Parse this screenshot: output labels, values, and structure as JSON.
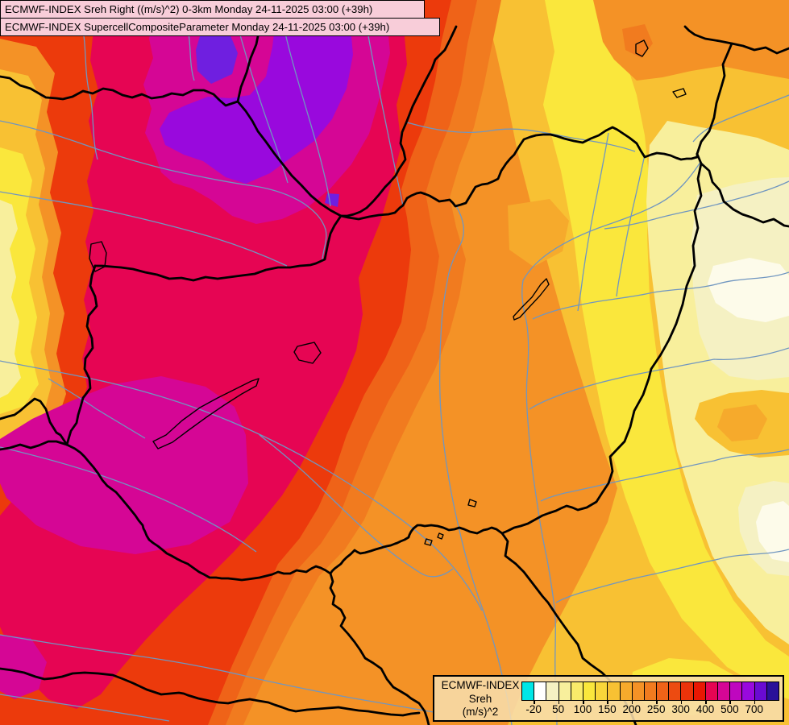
{
  "header": {
    "line1": "ECMWF-INDEX Sreh Right ((m/s)^2) 0-3km Monday 24-11-2025 03:00 (+39h)",
    "line2": "ECMWF-INDEX SupercellCompositeParameter Monday 24-11-2025 03:00 (+39h)"
  },
  "legend": {
    "product": "ECMWF-INDEX",
    "parameter": "Sreh",
    "units": "(m/s)^2",
    "tick_labels": [
      "-20",
      "50",
      "100",
      "150",
      "200",
      "250",
      "300",
      "400",
      "500",
      "700"
    ],
    "swatch_colors": [
      "#00E6E6",
      "#FFFFFF",
      "#F5F1C3",
      "#F8EF9C",
      "#F9EB6A",
      "#FAE73C",
      "#F9D63A",
      "#F8C133",
      "#F6AA2C",
      "#F49226",
      "#F17B1F",
      "#EF6318",
      "#ED4B11",
      "#EB330A",
      "#E91703",
      "#E60553",
      "#D50695",
      "#BF07BF",
      "#9909DD",
      "#6A0BD2",
      "#2A1199"
    ]
  },
  "map": {
    "palette": {
      "orange": "#F49226",
      "golden": "#F8C133",
      "yellow": "#FAE73C",
      "pale_yellow": "#F8EF9C",
      "cream": "#F5F1C3",
      "near_white": "#FDFBEA",
      "light_orange": "#F6AA2C",
      "dark_orange": "#F17B1F",
      "red_orange": "#EF6318",
      "red": "#EC3A0C",
      "crimson": "#E60553",
      "magenta": "#D50695",
      "purple": "#9909DD",
      "violet": "#6F1FE0",
      "river": "#7096C0",
      "border": "#000000",
      "title_bg": "#F8CDD9",
      "legend_bg": "#F7DDAC"
    }
  },
  "chart_data": {
    "type": "heatmap",
    "title": "ECMWF-INDEX Sreh Right ((m/s)^2) 0-3km",
    "valid_time": "Monday 24-11-2025 03:00 (+39h)",
    "scale_ticks": [
      -20,
      50,
      100,
      150,
      200,
      250,
      300,
      400,
      500,
      700
    ],
    "scale_colors": [
      "#00E6E6",
      "#FFFFFF",
      "#F5F1C3",
      "#F8EF9C",
      "#F9EB6A",
      "#FAE73C",
      "#F9D63A",
      "#F8C133",
      "#F6AA2C",
      "#F49226",
      "#F17B1F",
      "#EF6318",
      "#ED4B11",
      "#EB330A",
      "#E91703",
      "#E60553",
      "#D50695",
      "#BF07BF",
      "#9909DD",
      "#6A0BD2",
      "#2A1199"
    ],
    "legend_position": "bottom-right"
  }
}
